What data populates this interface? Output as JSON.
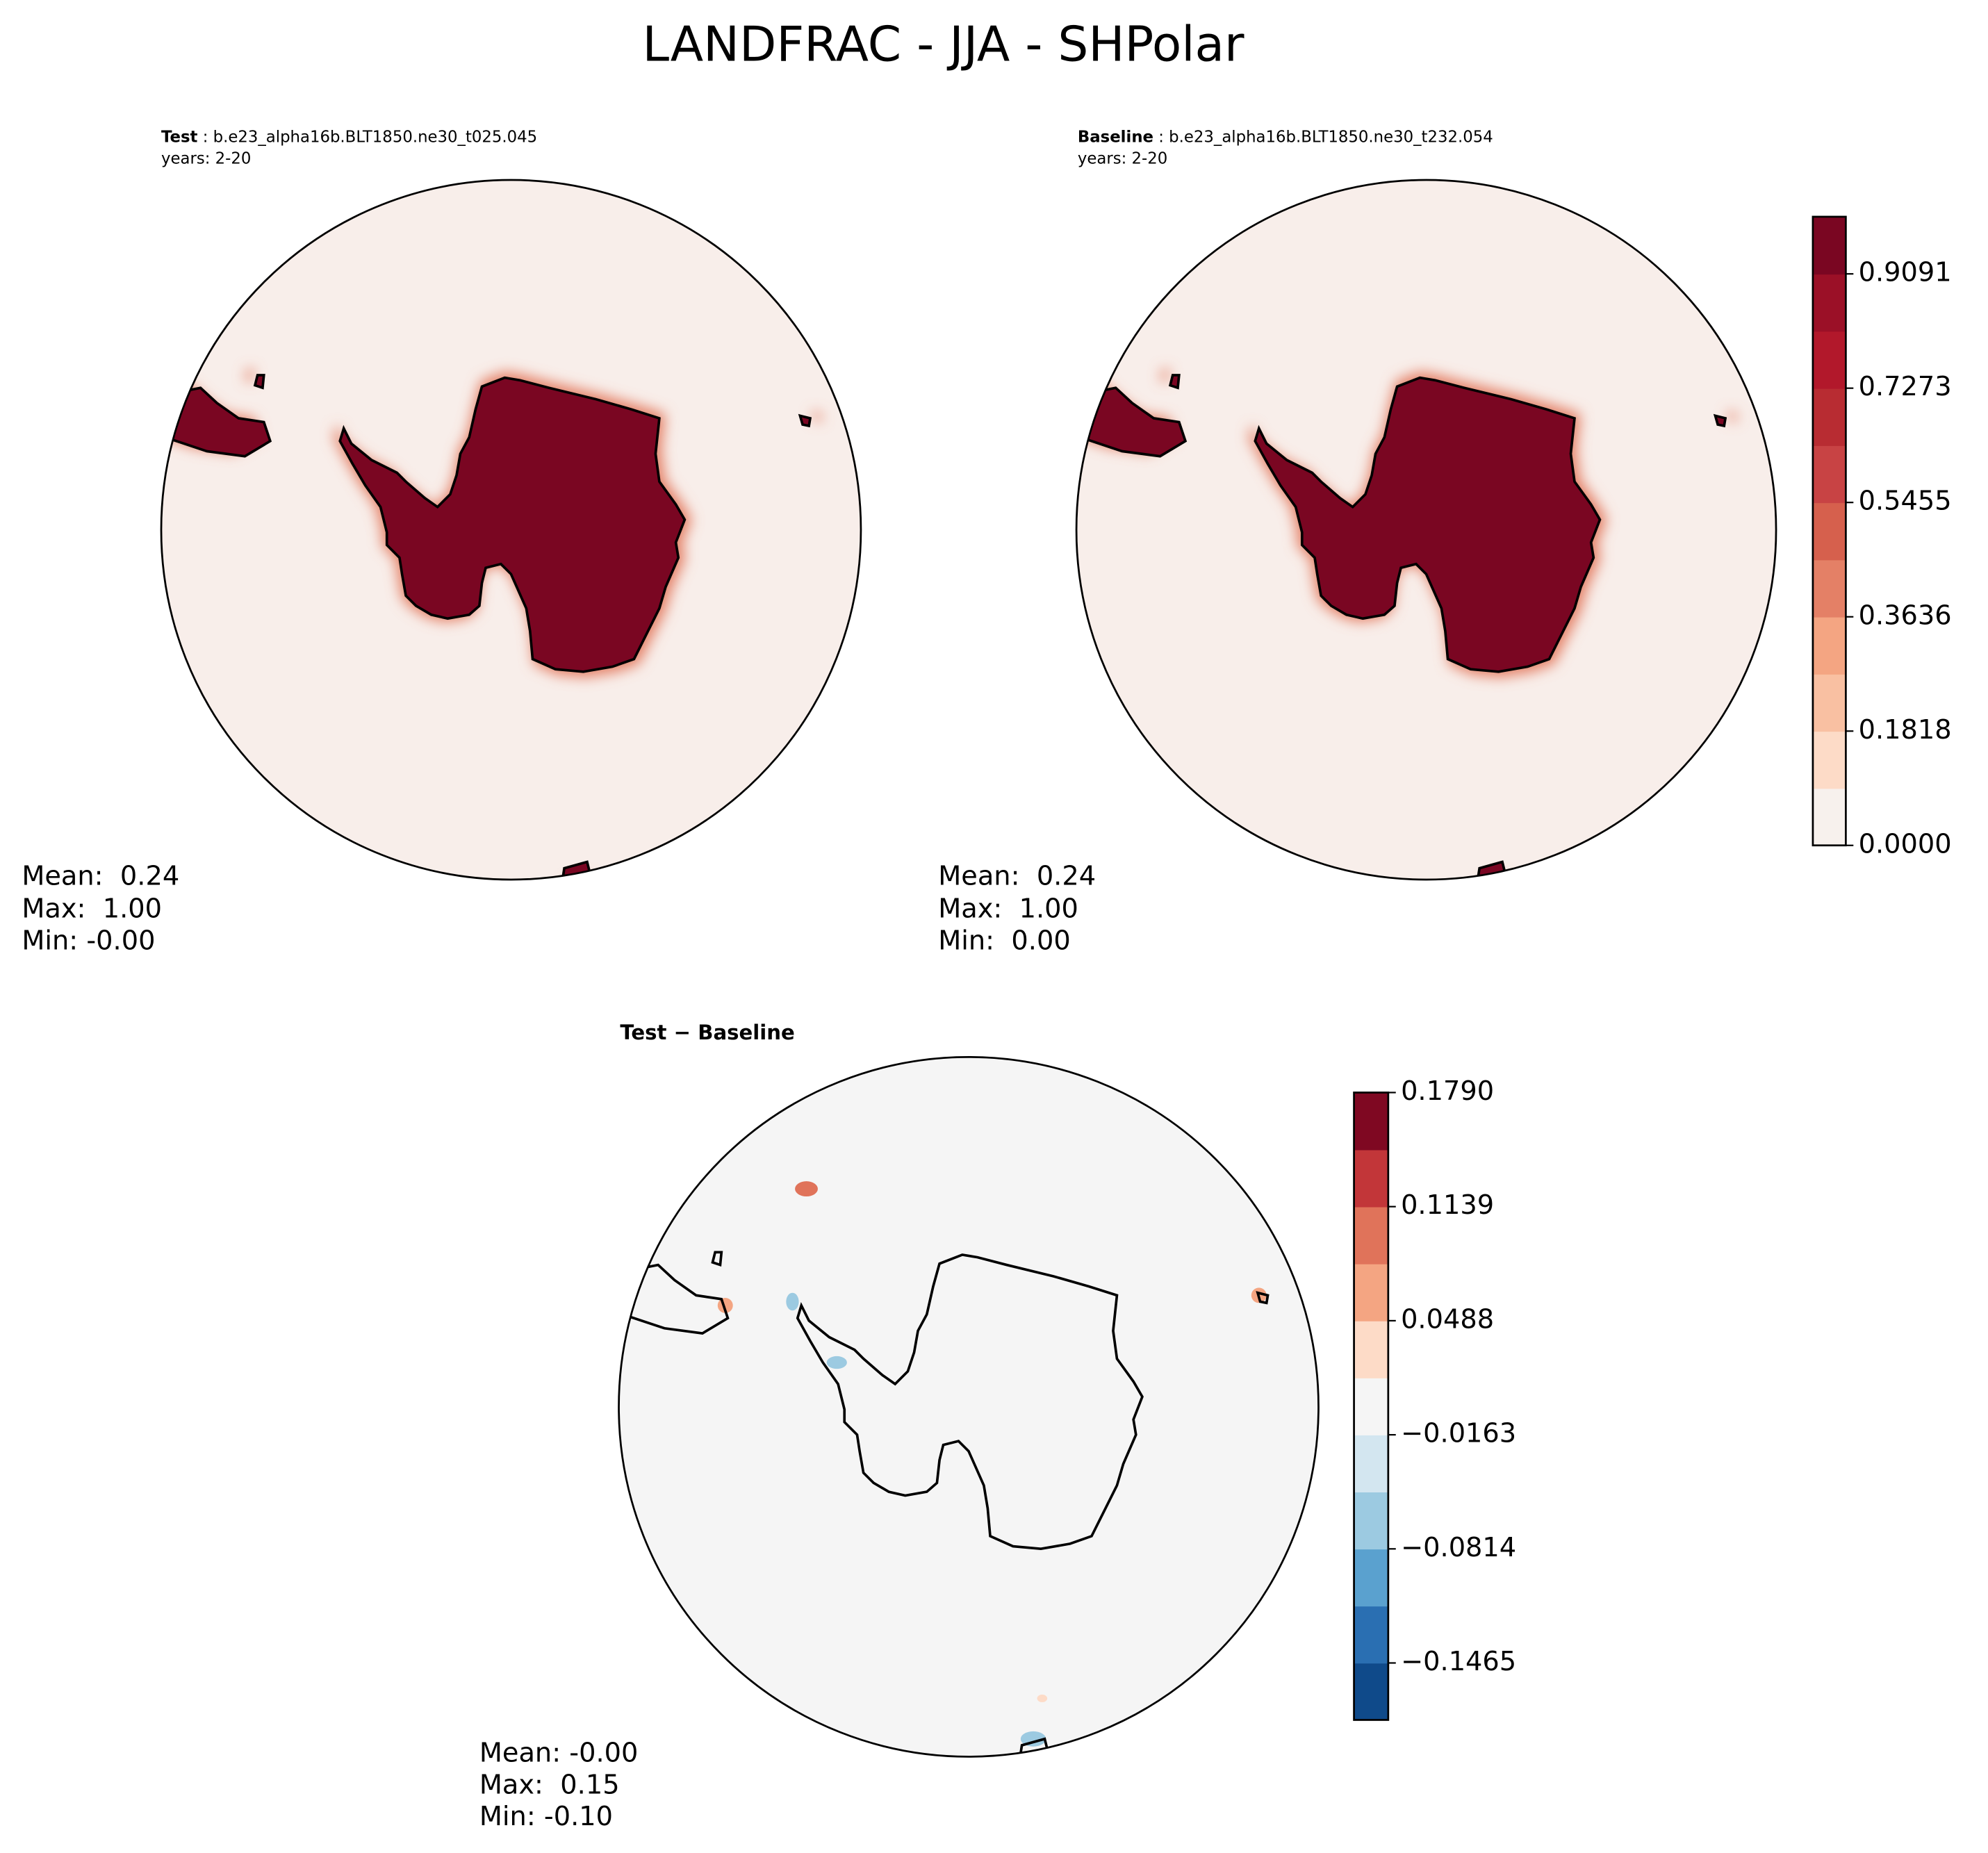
{
  "title": "LANDFRAC - JJA - SHPolar",
  "panels": [
    {
      "label": "Test",
      "case": " : b.e23_alpha16b.BLT1850.ne30_t025.045",
      "years": "years: 2-20",
      "stats": [
        "Mean:  0.24",
        "Max:  1.00",
        "Min: -0.00"
      ]
    },
    {
      "label": "Baseline",
      "case": " : b.e23_alpha16b.BLT1850.ne30_t232.054",
      "years": "years: 2-20",
      "stats": [
        "Mean:  0.24",
        "Max:  1.00",
        "Min:  0.00"
      ]
    }
  ],
  "difference": {
    "title": "Test − Baseline",
    "stats": [
      "Mean: -0.00",
      "Max:  0.15",
      "Min: -0.10"
    ]
  },
  "colorbars": [
    {
      "range": [
        0,
        1
      ],
      "ticks": [
        {
          "value": 0,
          "label": "0.0000"
        },
        0.1818,
        0.3636,
        0.5455,
        0.7273,
        0.9091
      ],
      "colors": [
        "#f7f1ed",
        "#fddbc7",
        "#f9c0a2",
        "#f4a582",
        "#e48066",
        "#d6604d",
        "#c84344",
        "#b82c32",
        "#b2182b",
        "#9b1027",
        "#7a0622"
      ]
    },
    {
      "range": [
        -0.179,
        0.179
      ],
      "ticks": [
        {
          "value": -0.1465,
          "label": "−0.1465"
        },
        {
          "value": -0.0814,
          "label": "−0.0814"
        },
        {
          "value": -0.0163,
          "label": "−0.0163"
        },
        0.0488,
        0.1139,
        {
          "value": 0.179,
          "label": "0.1790"
        }
      ],
      "colors": [
        "#0f4a8a",
        "#2a6fb2",
        "#5aa1cf",
        "#9ccae1",
        "#d3e6f0",
        "#f5f5f5",
        "#fddbc7",
        "#f4a582",
        "#e0735a",
        "#c23639",
        "#7f0822"
      ]
    }
  ]
}
